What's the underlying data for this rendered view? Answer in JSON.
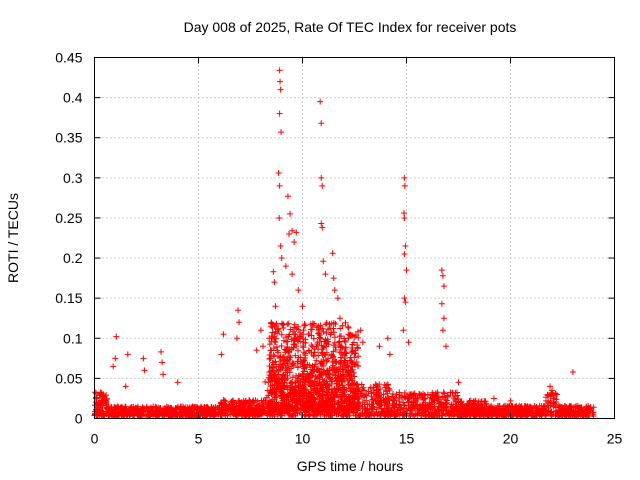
{
  "chart_data": {
    "type": "scatter",
    "title": "Day 008 of 2025, Rate Of TEC Index for receiver pots",
    "xlabel": "GPS time / hours",
    "ylabel": "ROTI / TECUs",
    "xlim": [
      0,
      25
    ],
    "ylim": [
      0,
      0.45
    ],
    "xticks": [
      0,
      5,
      10,
      15,
      20,
      25
    ],
    "xtick_labels": [
      "0",
      "5",
      "10",
      "15",
      "20",
      "25"
    ],
    "yticks": [
      0,
      0.05,
      0.1,
      0.15,
      0.2,
      0.25,
      0.3,
      0.35,
      0.4,
      0.45
    ],
    "ytick_labels": [
      "0",
      "0.05",
      "0.1",
      "0.15",
      "0.2",
      "0.25",
      "0.3",
      "0.35",
      "0.4",
      "0.45"
    ],
    "grid": true,
    "legend": "none",
    "series": [
      {
        "name": "ROTI",
        "marker": "+",
        "color": "#ff0000",
        "spikes": [
          {
            "x": 0.1,
            "y": 0.025
          },
          {
            "x": 1.05,
            "y": 0.102
          },
          {
            "x": 1.0,
            "y": 0.075
          },
          {
            "x": 0.9,
            "y": 0.065
          },
          {
            "x": 1.6,
            "y": 0.08
          },
          {
            "x": 1.5,
            "y": 0.04
          },
          {
            "x": 2.35,
            "y": 0.075
          },
          {
            "x": 2.4,
            "y": 0.06
          },
          {
            "x": 3.2,
            "y": 0.083
          },
          {
            "x": 3.25,
            "y": 0.07
          },
          {
            "x": 3.3,
            "y": 0.055
          },
          {
            "x": 4.0,
            "y": 0.045
          },
          {
            "x": 6.2,
            "y": 0.105
          },
          {
            "x": 6.1,
            "y": 0.08
          },
          {
            "x": 6.9,
            "y": 0.135
          },
          {
            "x": 6.95,
            "y": 0.12
          },
          {
            "x": 6.85,
            "y": 0.1
          },
          {
            "x": 7.8,
            "y": 0.085
          },
          {
            "x": 8.0,
            "y": 0.11
          },
          {
            "x": 8.1,
            "y": 0.09
          },
          {
            "x": 8.4,
            "y": 0.1
          },
          {
            "x": 8.5,
            "y": 0.115
          },
          {
            "x": 8.6,
            "y": 0.183
          },
          {
            "x": 8.65,
            "y": 0.17
          },
          {
            "x": 8.7,
            "y": 0.14
          },
          {
            "x": 8.9,
            "y": 0.434
          },
          {
            "x": 8.92,
            "y": 0.42
          },
          {
            "x": 8.95,
            "y": 0.41
          },
          {
            "x": 8.9,
            "y": 0.38
          },
          {
            "x": 8.97,
            "y": 0.357
          },
          {
            "x": 8.85,
            "y": 0.306
          },
          {
            "x": 8.9,
            "y": 0.29
          },
          {
            "x": 8.88,
            "y": 0.25
          },
          {
            "x": 8.95,
            "y": 0.215
          },
          {
            "x": 9.0,
            "y": 0.2
          },
          {
            "x": 9.3,
            "y": 0.277
          },
          {
            "x": 9.4,
            "y": 0.255
          },
          {
            "x": 9.35,
            "y": 0.23
          },
          {
            "x": 9.5,
            "y": 0.234
          },
          {
            "x": 9.6,
            "y": 0.22
          },
          {
            "x": 9.7,
            "y": 0.232
          },
          {
            "x": 9.2,
            "y": 0.19
          },
          {
            "x": 9.5,
            "y": 0.18
          },
          {
            "x": 9.8,
            "y": 0.16
          },
          {
            "x": 10.0,
            "y": 0.14
          },
          {
            "x": 10.85,
            "y": 0.395
          },
          {
            "x": 10.9,
            "y": 0.368
          },
          {
            "x": 10.9,
            "y": 0.3
          },
          {
            "x": 10.95,
            "y": 0.29
          },
          {
            "x": 10.9,
            "y": 0.243
          },
          {
            "x": 10.95,
            "y": 0.238
          },
          {
            "x": 11.0,
            "y": 0.196
          },
          {
            "x": 11.1,
            "y": 0.18
          },
          {
            "x": 11.45,
            "y": 0.206
          },
          {
            "x": 11.5,
            "y": 0.175
          },
          {
            "x": 11.55,
            "y": 0.16
          },
          {
            "x": 11.7,
            "y": 0.15
          },
          {
            "x": 11.8,
            "y": 0.125
          },
          {
            "x": 12.2,
            "y": 0.1
          },
          {
            "x": 12.8,
            "y": 0.11
          },
          {
            "x": 12.9,
            "y": 0.095
          },
          {
            "x": 13.7,
            "y": 0.09
          },
          {
            "x": 14.1,
            "y": 0.1
          },
          {
            "x": 14.2,
            "y": 0.08
          },
          {
            "x": 14.9,
            "y": 0.3
          },
          {
            "x": 14.92,
            "y": 0.29
          },
          {
            "x": 14.88,
            "y": 0.256
          },
          {
            "x": 14.9,
            "y": 0.25
          },
          {
            "x": 14.95,
            "y": 0.215
          },
          {
            "x": 14.9,
            "y": 0.205
          },
          {
            "x": 15.0,
            "y": 0.185
          },
          {
            "x": 14.9,
            "y": 0.15
          },
          {
            "x": 14.95,
            "y": 0.145
          },
          {
            "x": 14.85,
            "y": 0.11
          },
          {
            "x": 15.1,
            "y": 0.095
          },
          {
            "x": 16.7,
            "y": 0.185
          },
          {
            "x": 16.75,
            "y": 0.178
          },
          {
            "x": 16.8,
            "y": 0.165
          },
          {
            "x": 16.7,
            "y": 0.143
          },
          {
            "x": 16.8,
            "y": 0.125
          },
          {
            "x": 16.75,
            "y": 0.11
          },
          {
            "x": 16.9,
            "y": 0.09
          },
          {
            "x": 17.5,
            "y": 0.045
          },
          {
            "x": 19.2,
            "y": 0.025
          },
          {
            "x": 20.0,
            "y": 0.022
          },
          {
            "x": 21.9,
            "y": 0.04
          },
          {
            "x": 22.0,
            "y": 0.035
          },
          {
            "x": 23.0,
            "y": 0.058
          }
        ]
      }
    ]
  }
}
